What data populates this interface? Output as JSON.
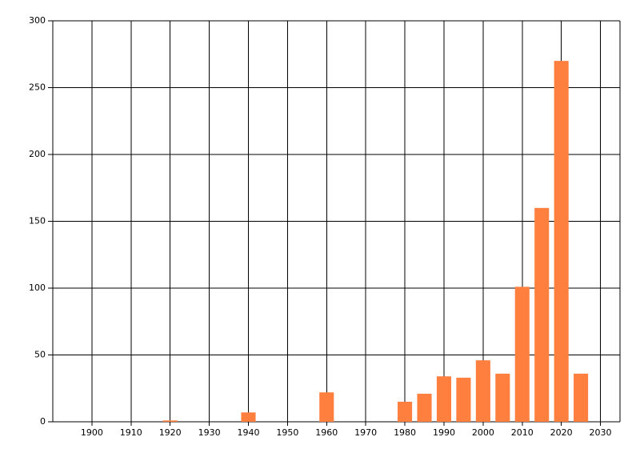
{
  "chart_data": {
    "type": "bar",
    "x": [
      1920,
      1940,
      1960,
      1980,
      1985,
      1990,
      1995,
      2000,
      2005,
      2010,
      2015,
      2020,
      2025
    ],
    "values": [
      1,
      7,
      22,
      15,
      21,
      34,
      33,
      46,
      36,
      101,
      160,
      270,
      36
    ],
    "color": "#ff7f3f",
    "xlim": [
      1890,
      2035
    ],
    "xticks": [
      1900,
      1910,
      1920,
      1930,
      1940,
      1950,
      1960,
      1970,
      1980,
      1990,
      2000,
      2010,
      2020,
      2030
    ],
    "ylim": [
      0,
      300
    ],
    "yticks": [
      0,
      50,
      100,
      150,
      200,
      250,
      300
    ],
    "grid": true
  }
}
